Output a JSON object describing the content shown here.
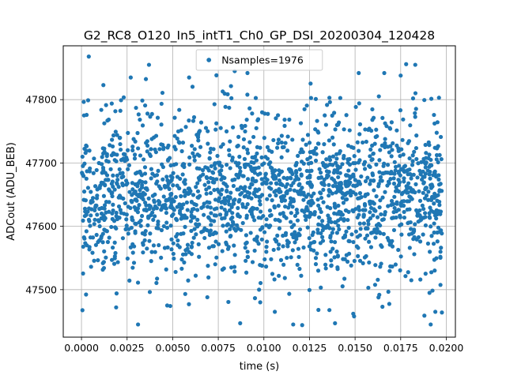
{
  "chart_data": {
    "type": "scatter",
    "title": "G2_RC8_O120_In5_intT1_Ch0_GP_DSI_20200304_120428",
    "xlabel": "time (s)",
    "ylabel": "ADCout (ADU_BEB)",
    "xlim": [
      -0.001,
      0.0205
    ],
    "ylim": [
      47425,
      47885
    ],
    "xticks": [
      0.0,
      0.0025,
      0.005,
      0.0075,
      0.01,
      0.0125,
      0.015,
      0.0175,
      0.02
    ],
    "xtick_labels": [
      "0.0000",
      "0.0025",
      "0.0050",
      "0.0075",
      "0.0100",
      "0.0125",
      "0.0150",
      "0.0175",
      "0.0200"
    ],
    "yticks": [
      47500,
      47600,
      47700,
      47800
    ],
    "ytick_labels": [
      "47500",
      "47600",
      "47700",
      "47800"
    ],
    "grid": true,
    "legend_position": "upper center",
    "series": [
      {
        "name": "Nsamples=1976",
        "color": "#1f77b4",
        "marker": "circle",
        "sample_count": 1976,
        "x_range": [
          0.0,
          0.0198
        ],
        "y_center": 47650,
        "y_spread": 65,
        "y_range": [
          47445,
          47868
        ],
        "points": [
          [
            0.0004,
            47868
          ],
          [
            0.0031,
            47445
          ],
          [
            0.0059,
            47835
          ],
          [
            0.0087,
            47447
          ],
          [
            0.0121,
            47444
          ],
          [
            0.0139,
            47447
          ],
          [
            0.0152,
            47842
          ],
          [
            0.0178,
            47856
          ],
          [
            0.0084,
            47845
          ],
          [
            0.0047,
            47475
          ],
          [
            0.0106,
            47465
          ],
          [
            0.0196,
            47803
          ],
          [
            0.0012,
            47823
          ],
          [
            0.0019,
            47472
          ],
          [
            0.0027,
            47835
          ],
          [
            0.0037,
            47855
          ],
          [
            0.0091,
            47842
          ],
          [
            0.0166,
            47842
          ],
          [
            0.0183,
            47855
          ],
          [
            0.0175,
            47838
          ],
          [
            0.0188,
            47459
          ],
          [
            0.0194,
            47465
          ],
          [
            0.0165,
            47473
          ],
          [
            0.0149,
            47462
          ],
          [
            0.0098,
            47480
          ],
          [
            0.0069,
            47488
          ]
        ]
      }
    ]
  }
}
